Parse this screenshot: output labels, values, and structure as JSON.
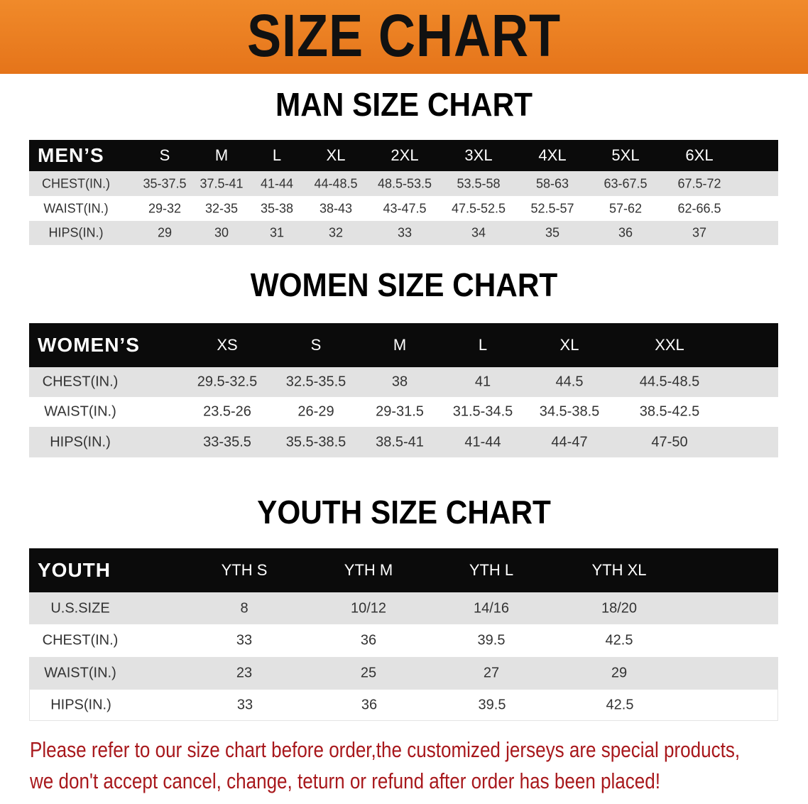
{
  "banner_title": "SIZE CHART",
  "men": {
    "title": "MAN SIZE CHART",
    "header": [
      "MEN’S",
      "S",
      "M",
      "L",
      "XL",
      "2XL",
      "3XL",
      "4XL",
      "5XL",
      "6XL"
    ],
    "rows": [
      [
        "CHEST(IN.)",
        "35-37.5",
        "37.5-41",
        "41-44",
        "44-48.5",
        "48.5-53.5",
        "53.5-58",
        "58-63",
        "63-67.5",
        "67.5-72"
      ],
      [
        "WAIST(IN.)",
        "29-32",
        "32-35",
        "35-38",
        "38-43",
        "43-47.5",
        "47.5-52.5",
        "52.5-57",
        "57-62",
        "62-66.5"
      ],
      [
        "HIPS(IN.)",
        "29",
        "30",
        "31",
        "32",
        "33",
        "34",
        "35",
        "36",
        "37"
      ]
    ]
  },
  "women": {
    "title": "WOMEN SIZE CHART",
    "header": [
      "WOMEN’S",
      "XS",
      "S",
      "M",
      "L",
      "XL",
      "XXL"
    ],
    "rows": [
      [
        "CHEST(IN.)",
        "29.5-32.5",
        "32.5-35.5",
        "38",
        "41",
        "44.5",
        "44.5-48.5"
      ],
      [
        "WAIST(IN.)",
        "23.5-26",
        "26-29",
        "29-31.5",
        "31.5-34.5",
        "34.5-38.5",
        "38.5-42.5"
      ],
      [
        "HIPS(IN.)",
        "33-35.5",
        "35.5-38.5",
        "38.5-41",
        "41-44",
        "44-47",
        "47-50"
      ]
    ]
  },
  "youth": {
    "title": "YOUTH SIZE CHART",
    "header": [
      "YOUTH",
      "YTH S",
      "YTH M",
      "YTH L",
      "YTH XL"
    ],
    "rows": [
      [
        "U.S.SIZE",
        "8",
        "10/12",
        "14/16",
        "18/20"
      ],
      [
        "CHEST(IN.)",
        "33",
        "36",
        "39.5",
        "42.5"
      ],
      [
        "WAIST(IN.)",
        "23",
        "25",
        "27",
        "29"
      ],
      [
        "HIPS(IN.)",
        "33",
        "36",
        "39.5",
        "42.5"
      ]
    ]
  },
  "footer": {
    "line1": "Please refer to our size chart before order,the customized jerseys are special products,",
    "line2": "we don't accept cancel, change, teturn or refund after order has been placed!"
  },
  "colors": {
    "banner": "#e87c1e",
    "header_row": "#0b0b0b",
    "stripe": "#e2e2e2",
    "footer_text": "#a8181c"
  }
}
